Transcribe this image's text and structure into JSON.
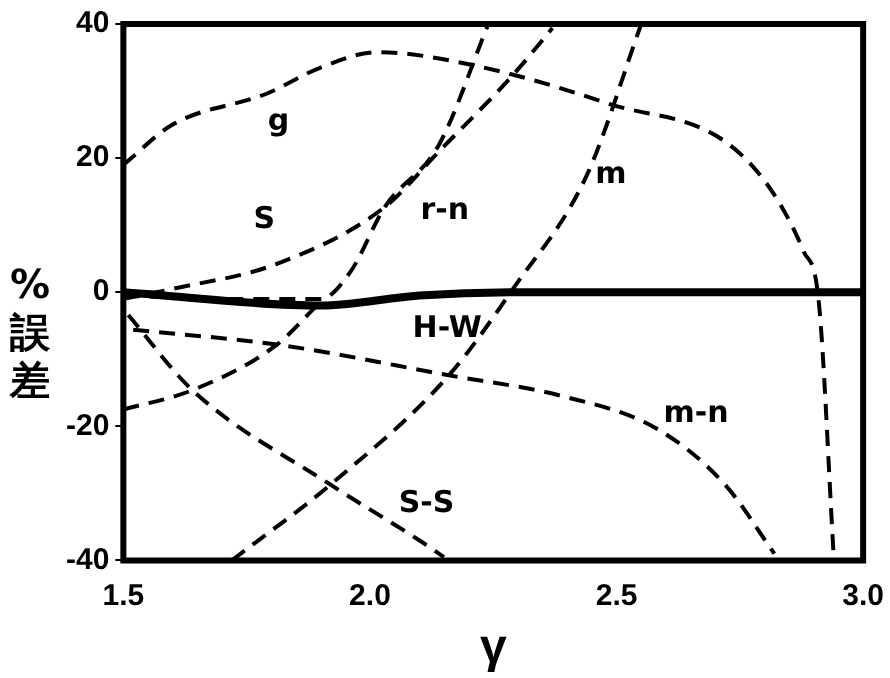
{
  "chart_data": {
    "type": "line",
    "xlabel": "γ",
    "ylabel": "% 誤差",
    "xlim": [
      1.5,
      3.0
    ],
    "ylim": [
      -40,
      40
    ],
    "xticks": [
      {
        "value": 1.5,
        "label": "1.5"
      },
      {
        "value": 2.0,
        "label": "2.0"
      },
      {
        "value": 2.5,
        "label": "2.5"
      },
      {
        "value": 3.0,
        "label": "3.0"
      }
    ],
    "yticks": [
      -40,
      -20,
      0,
      20,
      40
    ],
    "grid": false,
    "legend": false,
    "marker": "none",
    "line_style": "dashed",
    "series": [
      {
        "color": "#000000",
        "x": [
          1.5,
          1.6,
          1.79,
          1.9,
          2.015,
          2.2,
          2.48,
          2.76,
          2.88,
          2.91,
          2.94
        ],
        "values": [
          19,
          25,
          29.6,
          33.5,
          35.8,
          34,
          28.2,
          20,
          6,
          -1.4,
          -39
        ]
      },
      {
        "color": "#000000",
        "x": [
          1.5,
          1.6,
          1.81,
          2.03,
          2.14,
          2.29,
          2.37
        ],
        "values": [
          -1,
          0.5,
          4.2,
          12.7,
          21,
          32.4,
          39.4
        ]
      },
      {
        "color": "#000000",
        "x": [
          1.5,
          1.7,
          1.9,
          1.96,
          2.03,
          2.14,
          2.24
        ],
        "values": [
          -0.5,
          -1,
          -1,
          3,
          12.7,
          22,
          40
        ]
      },
      {
        "color": "#000000",
        "x": [
          1.5,
          1.64,
          1.81,
          1.9
        ],
        "values": [
          -17.5,
          -14.6,
          -7.9,
          -1.4
        ]
      },
      {
        "color": "#000000",
        "x": [
          1.72,
          1.92,
          2.16,
          2.29,
          2.44,
          2.55
        ],
        "values": [
          -40,
          -28.7,
          -12.4,
          0.5,
          17.5,
          40
        ]
      },
      {
        "color": "#000000",
        "x": [
          1.51,
          1.64,
          1.92,
          2.1,
          2.15
        ],
        "values": [
          -3.4,
          -14.6,
          -28.7,
          -37,
          -39.5
        ]
      },
      {
        "color": "#000000",
        "x": [
          1.52,
          1.82,
          2.16,
          2.39,
          2.58,
          2.72,
          2.82
        ],
        "values": [
          -5.6,
          -7.9,
          -12.4,
          -15.5,
          -20.3,
          -28.7,
          -39
        ]
      },
      {
        "color": "#000000",
        "line_style": "solid",
        "x": [
          1.5,
          1.9,
          2.1,
          2.3,
          3.0
        ],
        "values": [
          0,
          -2,
          -0.5,
          0,
          0
        ]
      }
    ],
    "annotations": [
      {
        "text": "g",
        "x": 1.79,
        "y": 29.6
      },
      {
        "text": "S",
        "x": 1.81,
        "y": 4.2
      },
      {
        "text": "r-n",
        "x": 2.03,
        "y": 12.7
      },
      {
        "text": "m",
        "x": 2.44,
        "y": 17.5
      },
      {
        "text": "H-W",
        "x": 2.1,
        "y": -0.5
      },
      {
        "text": "m-n",
        "x": 2.58,
        "y": -20.3
      },
      {
        "text": "S-S",
        "x": 1.92,
        "y": -28.7
      }
    ]
  }
}
